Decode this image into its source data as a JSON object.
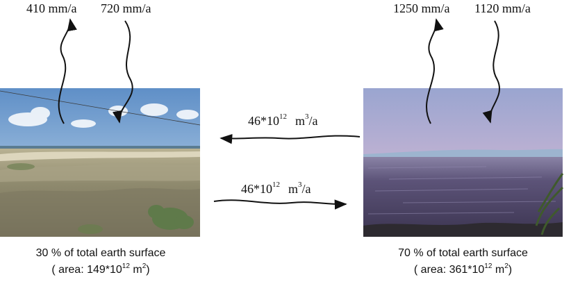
{
  "land": {
    "precipitation": "410 mm/a",
    "evaporation": "720 mm/a",
    "caption_line1": "30 % of total earth surface",
    "caption_area_prefix": "( area: 149*10",
    "caption_area_exp": "12",
    "caption_area_unit": " m",
    "caption_area_unit_exp": "2",
    "caption_area_suffix": ")"
  },
  "ocean": {
    "evaporation": "1250 mm/a",
    "precipitation": "1120 mm/a",
    "caption_line1": "70 % of total earth surface",
    "caption_area_prefix": "( area: 361*10",
    "caption_area_exp": "12",
    "caption_area_unit": " m",
    "caption_area_unit_exp": "2",
    "caption_area_suffix": ")"
  },
  "transport_ocean_to_land": {
    "base": "46*10",
    "exp": "12",
    "unit": "m",
    "unit_exp": "3",
    "unit_suffix": "/a"
  },
  "transport_land_to_ocean": {
    "base": "46*10",
    "exp": "12",
    "unit": "m",
    "unit_exp": "3",
    "unit_suffix": "/a"
  },
  "colors": {
    "land_sky_top": "#6f9ccf",
    "land_sky_bottom": "#c9dbea",
    "land_ground": "#8f8a6e",
    "ocean_sky_top": "#a9b2d6",
    "ocean_glow": "#f0a4ad",
    "ocean_water": "#4e4466"
  }
}
